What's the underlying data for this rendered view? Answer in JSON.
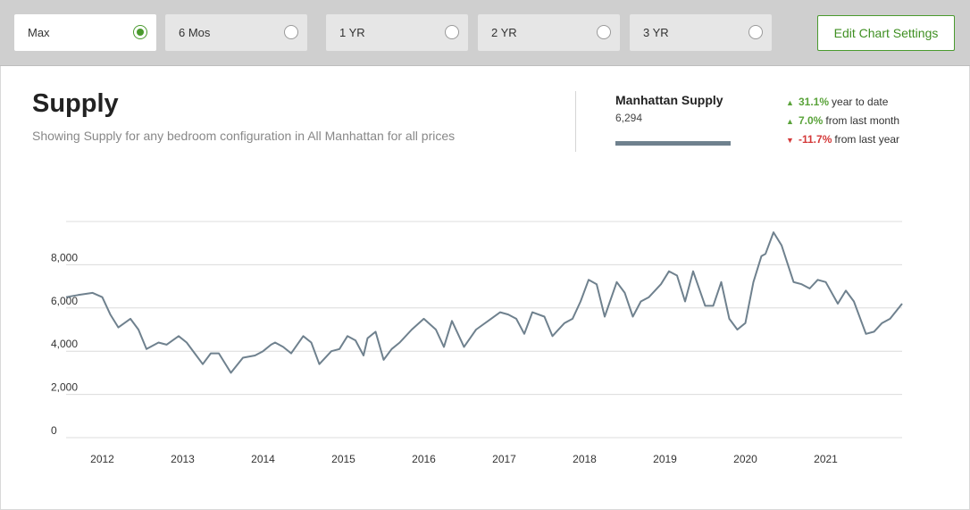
{
  "toolbar": {
    "ranges": [
      {
        "label": "Max",
        "selected": true
      },
      {
        "label": "6 Mos",
        "selected": false
      },
      {
        "label": "1 YR",
        "selected": false
      },
      {
        "label": "2 YR",
        "selected": false
      },
      {
        "label": "3 YR",
        "selected": false
      }
    ],
    "edit_label": "Edit Chart Settings"
  },
  "header": {
    "title": "Supply",
    "subtitle": "Showing Supply for any bedroom configuration in All Manhattan for all prices"
  },
  "legend": {
    "name": "Manhattan Supply",
    "value": "6,294"
  },
  "stats": [
    {
      "pct": "31.1%",
      "text": "year to date",
      "direction": "up"
    },
    {
      "pct": "7.0%",
      "text": "from last month",
      "direction": "up"
    },
    {
      "pct": "-11.7%",
      "text": "from last year",
      "direction": "down"
    }
  ],
  "colors": {
    "accent": "#4a9a2e",
    "up": "#5aa33a",
    "down": "#d43a3a",
    "series": "#6f818e"
  },
  "chart_data": {
    "type": "line",
    "title": "Supply",
    "xlabel": "",
    "ylabel": "",
    "ylim": [
      0,
      10000
    ],
    "xlim": [
      2011.55,
      2021.95
    ],
    "yticks": [
      "0",
      "2,000",
      "4,000",
      "6,000",
      "8,000"
    ],
    "xticks": [
      "2012",
      "2013",
      "2014",
      "2015",
      "2016",
      "2017",
      "2018",
      "2019",
      "2020",
      "2021"
    ],
    "grid": true,
    "series": [
      {
        "name": "Manhattan Supply",
        "x": [
          2011.55,
          2011.7,
          2011.88,
          2012.0,
          2012.1,
          2012.2,
          2012.35,
          2012.45,
          2012.55,
          2012.7,
          2012.8,
          2012.95,
          2013.05,
          2013.15,
          2013.25,
          2013.35,
          2013.45,
          2013.5,
          2013.6,
          2013.75,
          2013.9,
          2014.0,
          2014.1,
          2014.15,
          2014.25,
          2014.35,
          2014.5,
          2014.6,
          2014.7,
          2014.85,
          2014.95,
          2015.05,
          2015.15,
          2015.25,
          2015.3,
          2015.4,
          2015.5,
          2015.6,
          2015.7,
          2015.85,
          2016.0,
          2016.15,
          2016.25,
          2016.35,
          2016.5,
          2016.65,
          2016.8,
          2016.95,
          2017.05,
          2017.15,
          2017.25,
          2017.35,
          2017.5,
          2017.6,
          2017.75,
          2017.85,
          2017.95,
          2018.05,
          2018.15,
          2018.25,
          2018.4,
          2018.5,
          2018.6,
          2018.7,
          2018.8,
          2018.95,
          2019.05,
          2019.15,
          2019.25,
          2019.35,
          2019.5,
          2019.6,
          2019.7,
          2019.8,
          2019.9,
          2020.0,
          2020.1,
          2020.2,
          2020.25,
          2020.35,
          2020.45,
          2020.6,
          2020.7,
          2020.8,
          2020.9,
          2021.0,
          2021.15,
          2021.25,
          2021.35,
          2021.5,
          2021.6,
          2021.7,
          2021.8,
          2021.95
        ],
        "values": [
          6500,
          6600,
          6700,
          6500,
          5700,
          5100,
          5500,
          5000,
          4100,
          4400,
          4300,
          4700,
          4400,
          3900,
          3400,
          3900,
          3900,
          3600,
          3000,
          3700,
          3800,
          4000,
          4300,
          4400,
          4200,
          3900,
          4700,
          4400,
          3400,
          4000,
          4100,
          4700,
          4500,
          3800,
          4600,
          4900,
          3600,
          4100,
          4400,
          5000,
          5500,
          5000,
          4200,
          5400,
          4200,
          5000,
          5400,
          5800,
          5700,
          5500,
          4800,
          5800,
          5600,
          4700,
          5300,
          5500,
          6300,
          7300,
          7100,
          5600,
          7200,
          6700,
          5600,
          6300,
          6500,
          7100,
          7700,
          7500,
          6300,
          7700,
          6100,
          6100,
          7200,
          5500,
          5000,
          5300,
          7200,
          8400,
          8500,
          9500,
          8900,
          7200,
          7100,
          6900,
          7300,
          7200,
          6200,
          6800,
          6300,
          4800,
          4900,
          5300,
          5500,
          6200
        ]
      }
    ]
  }
}
